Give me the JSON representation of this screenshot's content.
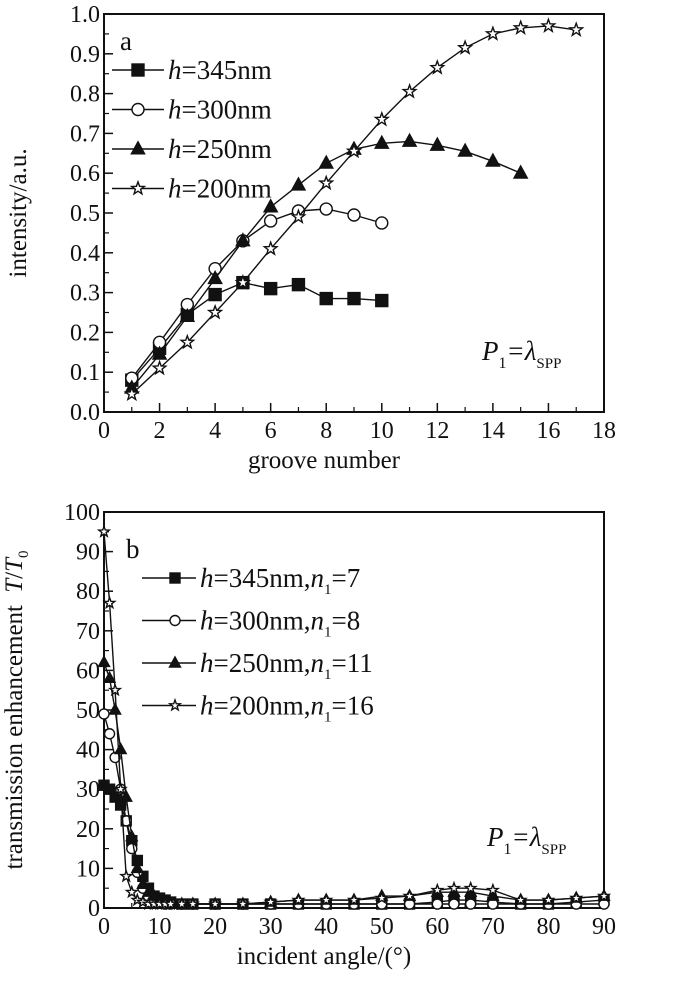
{
  "chart_data": [
    {
      "type": "line",
      "panel_label": "a",
      "xlabel": "groove number",
      "ylabel": "intensity/a.u.",
      "xlim": [
        0,
        18
      ],
      "ylim": [
        0.0,
        1.0
      ],
      "xticks": [
        "0",
        "2",
        "4",
        "6",
        "8",
        "10",
        "12",
        "14",
        "16",
        "18"
      ],
      "yticks": [
        "0.0",
        "0.1",
        "0.2",
        "0.3",
        "0.4",
        "0.5",
        "0.6",
        "0.7",
        "0.8",
        "0.9",
        "1.0"
      ],
      "annotation": {
        "p": "P",
        "sub1": "1",
        "eq": "=λ",
        "sub2": "SPP"
      },
      "legend_position": "top-left",
      "series": [
        {
          "name": "h=345nm",
          "label": {
            "h": "h",
            "rest": "=345nm"
          },
          "marker": "square-filled",
          "x": [
            1,
            2,
            3,
            4,
            5,
            6,
            7,
            8,
            9,
            10
          ],
          "y": [
            0.08,
            0.16,
            0.245,
            0.295,
            0.325,
            0.31,
            0.32,
            0.285,
            0.285,
            0.28
          ]
        },
        {
          "name": "h=300nm",
          "label": {
            "h": "h",
            "rest": "=300nm"
          },
          "marker": "circle-open",
          "x": [
            1,
            2,
            3,
            4,
            5,
            6,
            7,
            8,
            9,
            10
          ],
          "y": [
            0.085,
            0.175,
            0.27,
            0.36,
            0.43,
            0.48,
            0.505,
            0.51,
            0.495,
            0.475
          ]
        },
        {
          "name": "h=250nm",
          "label": {
            "h": "h",
            "rest": "=250nm"
          },
          "marker": "triangle-filled",
          "x": [
            1,
            2,
            3,
            4,
            5,
            6,
            7,
            8,
            9,
            10,
            11,
            12,
            13,
            14,
            15
          ],
          "y": [
            0.06,
            0.145,
            0.24,
            0.335,
            0.43,
            0.515,
            0.57,
            0.625,
            0.66,
            0.675,
            0.68,
            0.67,
            0.655,
            0.63,
            0.6
          ]
        },
        {
          "name": "h=200nm",
          "label": {
            "h": "h",
            "rest": "=200nm"
          },
          "marker": "star-open",
          "x": [
            1,
            2,
            3,
            4,
            5,
            6,
            7,
            8,
            9,
            10,
            11,
            12,
            13,
            14,
            15,
            16,
            17
          ],
          "y": [
            0.045,
            0.11,
            0.175,
            0.25,
            0.325,
            0.41,
            0.49,
            0.575,
            0.655,
            0.735,
            0.805,
            0.865,
            0.915,
            0.95,
            0.965,
            0.97,
            0.96
          ]
        }
      ]
    },
    {
      "type": "line",
      "panel_label": "b",
      "xlabel": "incident angle/(°)",
      "ylabel": {
        "text": "transmission enhancement ",
        "t1": "T",
        "slash": "/",
        "t2": "T",
        "sub": "0"
      },
      "xlim": [
        0,
        90
      ],
      "ylim": [
        0,
        100
      ],
      "xticks": [
        "0",
        "10",
        "20",
        "30",
        "40",
        "50",
        "60",
        "70",
        "80",
        "90"
      ],
      "yticks": [
        "0",
        "10",
        "20",
        "30",
        "40",
        "50",
        "60",
        "70",
        "80",
        "90",
        "100"
      ],
      "annotation": {
        "p": "P",
        "sub1": "1",
        "eq": "=λ",
        "sub2": "SPP"
      },
      "legend_position": "top-left",
      "x": [
        0,
        1,
        2,
        3,
        4,
        5,
        6,
        7,
        8,
        9,
        10,
        11,
        12,
        14,
        16,
        20,
        25,
        30,
        35,
        40,
        45,
        50,
        55,
        60,
        63,
        66,
        70,
        75,
        80,
        85,
        90
      ],
      "series": [
        {
          "name": "h=345nm,n1=7",
          "label": {
            "h": "h",
            "rest": "=345nm,",
            "n": "n",
            "sub": "1",
            "eq": "=7"
          },
          "marker": "square-filled",
          "y": [
            31,
            30,
            28,
            26,
            22,
            17,
            12,
            8,
            5,
            3,
            2.5,
            2,
            1.5,
            1,
            1,
            1,
            1,
            1,
            1,
            1,
            1,
            1,
            1,
            1.5,
            2,
            2,
            1.5,
            1,
            1,
            1.5,
            2
          ]
        },
        {
          "name": "h=300nm,n1=8",
          "label": {
            "h": "h",
            "rest": "=300nm,",
            "n": "n",
            "sub": "1",
            "eq": "=8"
          },
          "marker": "circle-open",
          "y": [
            49,
            44,
            38,
            30,
            22,
            15,
            9,
            5,
            3,
            2,
            1.5,
            1,
            1,
            1,
            1,
            1,
            1,
            1,
            1,
            1,
            1,
            1,
            1,
            1,
            1,
            1,
            1,
            1,
            1,
            1,
            1
          ]
        },
        {
          "name": "h=250nm,n1=11",
          "label": {
            "h": "h",
            "rest": "=250nm,",
            "n": "n",
            "sub": "1",
            "eq": "=11"
          },
          "marker": "triangle-filled",
          "y": [
            62,
            58,
            50,
            40,
            28,
            18,
            10,
            6,
            4,
            3,
            2,
            1.5,
            1,
            1,
            1,
            1,
            1,
            1.5,
            2,
            2,
            2,
            3,
            3,
            4,
            4,
            4,
            3,
            2,
            2,
            2.5,
            3
          ]
        },
        {
          "name": "h=200nm,n1=16",
          "label": {
            "h": "h",
            "rest": "=200nm,",
            "n": "n",
            "sub": "1",
            "eq": "=16"
          },
          "marker": "star-open",
          "y": [
            95,
            77,
            55,
            30,
            8,
            4,
            2,
            1.5,
            1,
            1,
            1,
            1,
            1,
            1,
            1,
            1,
            1,
            1.5,
            2,
            2,
            2,
            2.5,
            3,
            4.5,
            5,
            5,
            4.5,
            2,
            2,
            2.5,
            3
          ]
        }
      ]
    }
  ]
}
